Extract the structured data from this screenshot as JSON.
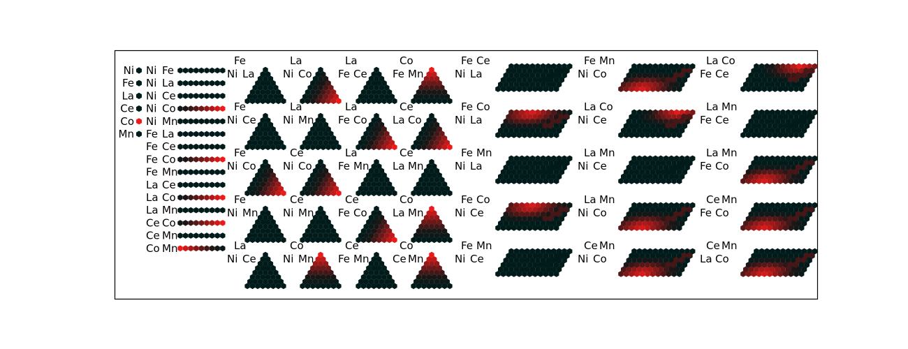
{
  "colors": {
    "dark": "#011b1a",
    "red": "#ee1a1a",
    "frame": "#000000",
    "background": "#ffffff"
  },
  "chart_data": {
    "type": "hexbin-composition-maps",
    "title": "",
    "elements": [
      "Ni",
      "Fe",
      "La",
      "Ce",
      "Co",
      "Mn"
    ],
    "element_intensity": [
      0,
      0,
      0,
      0,
      1,
      0
    ],
    "binary_pairs": [
      {
        "a": "Ni",
        "b": "Fe",
        "start": 0,
        "end": 0
      },
      {
        "a": "Ni",
        "b": "La",
        "start": 0,
        "end": 0
      },
      {
        "a": "Ni",
        "b": "Ce",
        "start": 0,
        "end": 0
      },
      {
        "a": "Ni",
        "b": "Co",
        "start": 0.2,
        "end": 1
      },
      {
        "a": "Ni",
        "b": "Mn",
        "start": 0,
        "end": 0
      },
      {
        "a": "Fe",
        "b": "La",
        "start": 0,
        "end": 0
      },
      {
        "a": "Fe",
        "b": "Ce",
        "start": 0,
        "end": 0
      },
      {
        "a": "Fe",
        "b": "Co",
        "start": 0.2,
        "end": 1
      },
      {
        "a": "Fe",
        "b": "Mn",
        "start": 0,
        "end": 0
      },
      {
        "a": "La",
        "b": "Ce",
        "start": 0,
        "end": 0
      },
      {
        "a": "La",
        "b": "Co",
        "start": 0.2,
        "end": 1
      },
      {
        "a": "La",
        "b": "Mn",
        "start": 0,
        "end": 0
      },
      {
        "a": "Ce",
        "b": "Co",
        "start": 0.2,
        "end": 1
      },
      {
        "a": "Ce",
        "b": "Mn",
        "start": 0,
        "end": 0
      },
      {
        "a": "Co",
        "b": "Mn",
        "start": 1,
        "end": 0.1
      }
    ],
    "ternary_maps": [
      [
        {
          "top": "Fe",
          "left": "Ni",
          "right": "La",
          "cobalt_vertex": "none"
        },
        {
          "top": "La",
          "left": "Ni",
          "right": "Co",
          "cobalt_vertex": "right"
        },
        {
          "top": "La",
          "left": "Fe",
          "right": "Ce",
          "cobalt_vertex": "none"
        },
        {
          "top": "Co",
          "left": "Fe",
          "right": "Mn",
          "cobalt_vertex": "top"
        }
      ],
      [
        {
          "top": "Fe",
          "left": "Ni",
          "right": "Ce",
          "cobalt_vertex": "none"
        },
        {
          "top": "La",
          "left": "Ni",
          "right": "Mn",
          "cobalt_vertex": "none"
        },
        {
          "top": "La",
          "left": "Fe",
          "right": "Co",
          "cobalt_vertex": "right"
        },
        {
          "top": "Ce",
          "left": "La",
          "right": "Co",
          "cobalt_vertex": "right"
        }
      ],
      [
        {
          "top": "Fe",
          "left": "Ni",
          "right": "Co",
          "cobalt_vertex": "right"
        },
        {
          "top": "Ce",
          "left": "Ni",
          "right": "Co",
          "cobalt_vertex": "right"
        },
        {
          "top": "La",
          "left": "Fe",
          "right": "Mn",
          "cobalt_vertex": "none"
        },
        {
          "top": "Ce",
          "left": "La",
          "right": "Mn",
          "cobalt_vertex": "none"
        }
      ],
      [
        {
          "top": "Fe",
          "left": "Ni",
          "right": "Mn",
          "cobalt_vertex": "none"
        },
        {
          "top": "Ce",
          "left": "Ni",
          "right": "Mn",
          "cobalt_vertex": "none"
        },
        {
          "top": "Ce",
          "left": "Fe",
          "right": "Co",
          "cobalt_vertex": "right"
        },
        {
          "top": "Co",
          "left": "La",
          "right": "Mn",
          "cobalt_vertex": "top"
        }
      ],
      [
        {
          "top": "La",
          "left": "Ni",
          "right": "Ce",
          "cobalt_vertex": "none"
        },
        {
          "top": "Co",
          "left": "Ni",
          "right": "Mn",
          "cobalt_vertex": "top"
        },
        {
          "top": "Ce",
          "left": "Fe",
          "right": "Mn",
          "cobalt_vertex": "none"
        },
        {
          "top": "Co",
          "left": "Ce",
          "right": "Mn",
          "cobalt_vertex": "top"
        }
      ]
    ],
    "quaternary_maps": [
      [
        {
          "labels": [
            "Fe",
            "Ce",
            "Ni",
            "La"
          ],
          "cobalt_pos": "none"
        },
        {
          "labels": [
            "Fe",
            "Mn",
            "Ni",
            "Co"
          ],
          "cobalt_pos": "bottom-right"
        },
        {
          "labels": [
            "La",
            "Co",
            "Fe",
            "Ce"
          ],
          "cobalt_pos": "top-right"
        }
      ],
      [
        {
          "labels": [
            "Fe",
            "Co",
            "Ni",
            "La"
          ],
          "cobalt_pos": "top-left"
        },
        {
          "labels": [
            "La",
            "Co",
            "Ni",
            "Ce"
          ],
          "cobalt_pos": "top-right"
        },
        {
          "labels": [
            "La",
            "Mn",
            "Fe",
            "Ce"
          ],
          "cobalt_pos": "none"
        }
      ],
      [
        {
          "labels": [
            "Fe",
            "Mn",
            "Ni",
            "La"
          ],
          "cobalt_pos": "none"
        },
        {
          "labels": [
            "La",
            "Mn",
            "Ni",
            "Ce"
          ],
          "cobalt_pos": "none"
        },
        {
          "labels": [
            "La",
            "Mn",
            "Fe",
            "Co"
          ],
          "cobalt_pos": "bottom-right"
        }
      ],
      [
        {
          "labels": [
            "Fe",
            "Co",
            "Ni",
            "Ce"
          ],
          "cobalt_pos": "top-left"
        },
        {
          "labels": [
            "La",
            "Mn",
            "Ni",
            "Co"
          ],
          "cobalt_pos": "bottom-right"
        },
        {
          "labels": [
            "Ce",
            "Mn",
            "Fe",
            "Co"
          ],
          "cobalt_pos": "bottom-right"
        }
      ],
      [
        {
          "labels": [
            "Fe",
            "Mn",
            "Ni",
            "Ce"
          ],
          "cobalt_pos": "none"
        },
        {
          "labels": [
            "Ce",
            "Mn",
            "Ni",
            "Co"
          ],
          "cobalt_pos": "bottom-right"
        },
        {
          "labels": [
            "Ce",
            "Mn",
            "La",
            "Co"
          ],
          "cobalt_pos": "bottom-right"
        }
      ]
    ]
  }
}
